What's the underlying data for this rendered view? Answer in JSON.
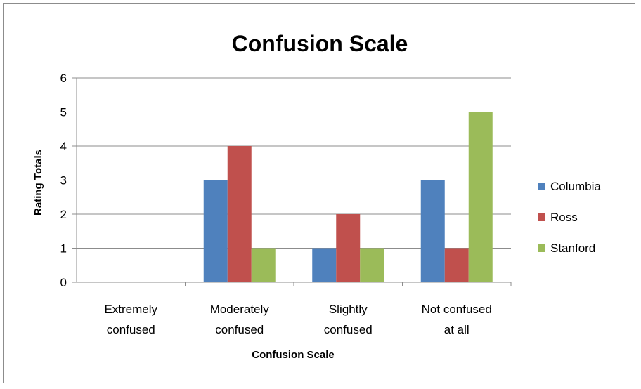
{
  "chart_data": {
    "type": "bar",
    "title": "Confusion Scale",
    "xlabel": "Confusion Scale",
    "ylabel": "Rating Totals",
    "ylim": [
      0,
      6
    ],
    "yticks": [
      0,
      1,
      2,
      3,
      4,
      5,
      6
    ],
    "grid": true,
    "legend_position": "right",
    "categories": [
      [
        "Extremely",
        "confused"
      ],
      [
        "Moderately",
        "confused"
      ],
      [
        "Slightly",
        "confused"
      ],
      [
        "Not confused",
        "at all"
      ]
    ],
    "series": [
      {
        "name": "Columbia",
        "color": "#4f81bd",
        "values": [
          0,
          3,
          1,
          3
        ]
      },
      {
        "name": "Ross",
        "color": "#c0504d",
        "values": [
          0,
          4,
          2,
          1
        ]
      },
      {
        "name": "Stanford",
        "color": "#9bbb59",
        "values": [
          0,
          1,
          1,
          5
        ]
      }
    ]
  }
}
